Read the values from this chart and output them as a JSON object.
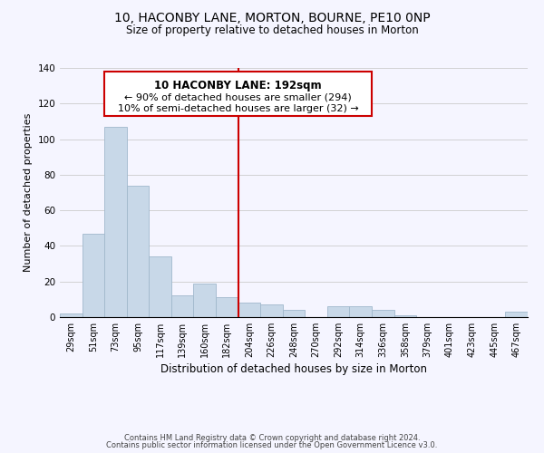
{
  "title": "10, HACONBY LANE, MORTON, BOURNE, PE10 0NP",
  "subtitle": "Size of property relative to detached houses in Morton",
  "xlabel": "Distribution of detached houses by size in Morton",
  "ylabel": "Number of detached properties",
  "bar_labels": [
    "29sqm",
    "51sqm",
    "73sqm",
    "95sqm",
    "117sqm",
    "139sqm",
    "160sqm",
    "182sqm",
    "204sqm",
    "226sqm",
    "248sqm",
    "270sqm",
    "292sqm",
    "314sqm",
    "336sqm",
    "358sqm",
    "379sqm",
    "401sqm",
    "423sqm",
    "445sqm",
    "467sqm"
  ],
  "bar_values": [
    2,
    47,
    107,
    74,
    34,
    12,
    19,
    11,
    8,
    7,
    4,
    0,
    6,
    6,
    4,
    1,
    0,
    0,
    0,
    0,
    3
  ],
  "bar_color": "#c8d8e8",
  "bar_edge_color": "#a0b8cc",
  "vline_x": 7.5,
  "vline_color": "#cc0000",
  "ylim": [
    0,
    140
  ],
  "yticks": [
    0,
    20,
    40,
    60,
    80,
    100,
    120,
    140
  ],
  "annotation_title": "10 HACONBY LANE: 192sqm",
  "annotation_line1": "← 90% of detached houses are smaller (294)",
  "annotation_line2": "10% of semi-detached houses are larger (32) →",
  "box_color": "#cc0000",
  "footer1": "Contains HM Land Registry data © Crown copyright and database right 2024.",
  "footer2": "Contains public sector information licensed under the Open Government Licence v3.0.",
  "background_color": "#f5f5ff"
}
